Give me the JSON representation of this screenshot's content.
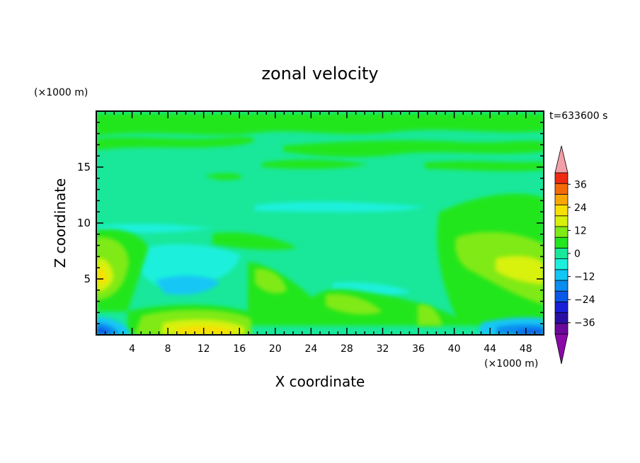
{
  "chart_data": {
    "type": "heatmap",
    "title": "zonal velocity",
    "xlabel": "X coordinate",
    "ylabel": "Z coordinate",
    "x_unit": "(×1000 m)",
    "y_unit": "(×1000 m)",
    "time_label": "t=633600 s",
    "xlim": [
      0,
      50
    ],
    "ylim": [
      0,
      20
    ],
    "x_ticks": [
      4,
      8,
      12,
      16,
      20,
      24,
      28,
      32,
      36,
      40,
      44,
      48
    ],
    "y_ticks": [
      5,
      10,
      15
    ],
    "colorbar": {
      "levels": [
        -42,
        -36,
        -30,
        -24,
        -18,
        -12,
        -6,
        0,
        6,
        12,
        18,
        24,
        30,
        36,
        42
      ],
      "tick_labels": [
        36,
        24,
        12,
        0,
        -12,
        -24,
        -36
      ],
      "colors": [
        "#6a0a9a",
        "#2b0fa3",
        "#1a1ed6",
        "#0b57e8",
        "#0a8cf0",
        "#12c6f5",
        "#1cf0dc",
        "#19e89a",
        "#24e61e",
        "#7fea16",
        "#d8f10c",
        "#f7e004",
        "#f8a704",
        "#f56a08",
        "#ef2a12",
        "#f2a0a8"
      ],
      "extend_low_color": "#8a0aa8",
      "extend_high_color": "#f2a0a8"
    },
    "features": [
      {
        "x": 12,
        "z": 0.5,
        "value": 18
      },
      {
        "x": 1,
        "z": 5.5,
        "value": 15
      },
      {
        "x": 48,
        "z": 5.5,
        "value": 14
      },
      {
        "x": 11,
        "z": 4.5,
        "value": -9
      },
      {
        "x": 1,
        "z": 0.3,
        "value": -20
      },
      {
        "x": 46,
        "z": 0.3,
        "value": -18
      }
    ]
  }
}
